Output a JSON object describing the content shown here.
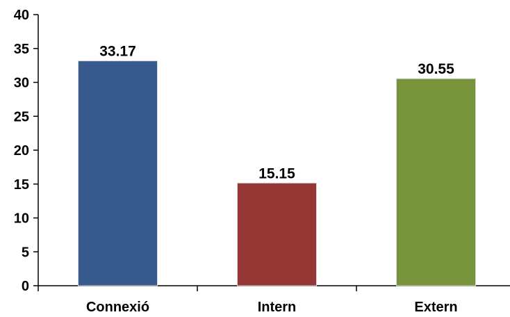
{
  "chart_data": {
    "type": "bar",
    "categories": [
      "Connexió",
      "Intern",
      "Extern"
    ],
    "values": [
      33.17,
      15.15,
      30.55
    ],
    "value_labels": [
      "33.17",
      "15.15",
      "30.55"
    ],
    "colors": [
      "#375A8C",
      "#953735",
      "#77933C"
    ],
    "title": "",
    "xlabel": "",
    "ylabel": "",
    "ylim": [
      0,
      40
    ],
    "yticks": [
      0,
      5,
      10,
      15,
      20,
      25,
      30,
      35,
      40
    ],
    "grid": false,
    "legend": "none"
  }
}
